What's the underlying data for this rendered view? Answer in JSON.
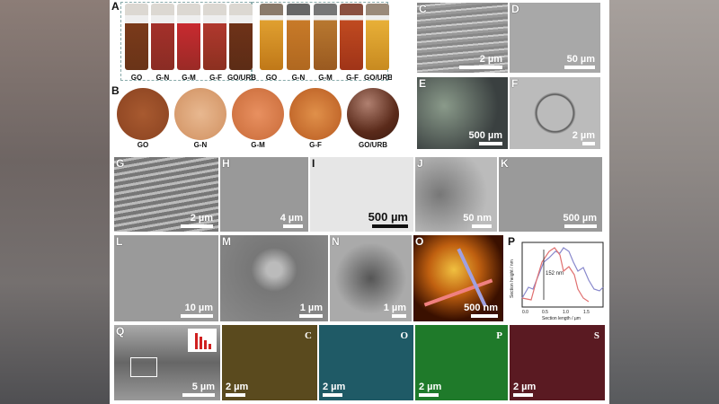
{
  "panel_labels": {
    "A": "A",
    "B": "B",
    "C": "C",
    "D": "D",
    "E": "E",
    "F": "F",
    "G": "G",
    "H": "H",
    "I": "I",
    "J": "J",
    "K": "K",
    "L": "L",
    "M": "M",
    "N": "N",
    "O": "O",
    "P": "P",
    "Q": "Q"
  },
  "panel_a": {
    "left_captions": [
      "GO",
      "G-N",
      "G-M",
      "G-F",
      "GO/URB"
    ],
    "right_captions": [
      "GO",
      "G-N",
      "G-M",
      "G-F",
      "GO/URB"
    ]
  },
  "panel_b": {
    "captions": [
      "GO",
      "G-N",
      "G-M",
      "G-F",
      "GO/URB"
    ]
  },
  "scale_bars": {
    "C": "2 µm",
    "D": "50 µm",
    "E": "500 µm",
    "F": "2 µm",
    "G": "2 µm",
    "H": "4 µm",
    "I": "500 µm",
    "J": "50 nm",
    "K": "500 µm",
    "L": "10 µm",
    "M": "1 µm",
    "N": "1 µm",
    "O": "500 nm",
    "Q": "5 µm",
    "map_C": "2 µm",
    "map_O": "2 µm",
    "map_P": "2 µm",
    "map_S": "2 µm"
  },
  "panel_p": {
    "xlabel": "Section length / µm",
    "ylabel": "Section height / nm",
    "annotation": "152 nm",
    "xticks": [
      "0.0",
      "0.5",
      "1.0",
      "1.5"
    ]
  },
  "element_maps": {
    "C": "C",
    "O": "O",
    "P": "P",
    "S": "S"
  },
  "colors": {
    "map_C": "#5a4a1e",
    "map_O": "#1f5a66",
    "map_P": "#1f7a2a",
    "map_S": "#5a1a22"
  }
}
